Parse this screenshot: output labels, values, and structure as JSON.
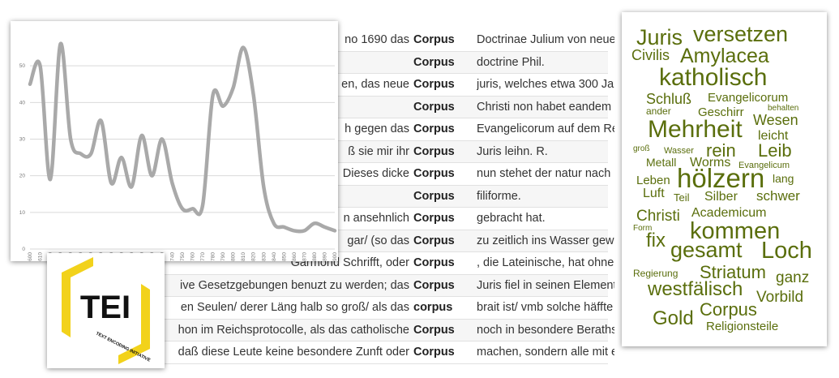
{
  "concordance": {
    "rows": [
      {
        "left": "no 1690 das",
        "keyword": "Corpus",
        "right": "Doctrinae Julium von neue"
      },
      {
        "left": "",
        "keyword": "Corpus",
        "right": "doctrine Phil."
      },
      {
        "left": "en, das neue",
        "keyword": "Corpus",
        "right": "juris, welches etwa 300 Ja"
      },
      {
        "left": "",
        "keyword": "Corpus",
        "right": "Christi non habet eandem"
      },
      {
        "left": "h gegen das",
        "keyword": "Corpus",
        "right": "Evangelicorum auf dem Re"
      },
      {
        "left": "ß sie mir ihr",
        "keyword": "Corpus",
        "right": "Juris leihn. R."
      },
      {
        "left": "Dieses dicke",
        "keyword": "Corpus",
        "right": "nun stehet der natur nach"
      },
      {
        "left": "",
        "keyword": "Corpus",
        "right": "filiforme."
      },
      {
        "left": "n ansehnlich",
        "keyword": "Corpus",
        "right": "gebracht hat."
      },
      {
        "left": "gar/ (so das",
        "keyword": "Corpus",
        "right": "zu zeitlich ins Wasser gew"
      },
      {
        "left": "Garmond Schrifft, oder",
        "keyword": "Corpus",
        "right": ", die Lateinische, hat ohne"
      },
      {
        "left": "ive Gesetzgebungen benuzt zu werden; das",
        "keyword": "Corpus",
        "right": "Juris fiel in seinen Element"
      },
      {
        "left": "en Seulen/ derer Läng halb so groß/ als das",
        "keyword": "corpus",
        "right": "brait ist/ vmb solche häffte"
      },
      {
        "left": "hon im Reichsprotocolle, als das catholische",
        "keyword": "Corpus",
        "right": "noch in besondere Beraths"
      },
      {
        "left": "daß diese Leute keine besondere Zunft oder",
        "keyword": "Corpus",
        "right": "machen, sondern alle mit einander entweder Spezereyhandl..."
      }
    ]
  },
  "chart_data": {
    "type": "line",
    "x": [
      1600,
      1610,
      1620,
      1630,
      1640,
      1650,
      1660,
      1670,
      1680,
      1690,
      1700,
      1710,
      1720,
      1730,
      1740,
      1750,
      1760,
      1770,
      1780,
      1790,
      1800,
      1810,
      1820,
      1830,
      1840,
      1850,
      1860,
      1870,
      1880,
      1890,
      1900
    ],
    "values": [
      45,
      50,
      19,
      56,
      30,
      26,
      26,
      35,
      18,
      25,
      17,
      31,
      20,
      30,
      18,
      11,
      11,
      12,
      42,
      39,
      44,
      55,
      42,
      17,
      7,
      6,
      5,
      5,
      7,
      6,
      5
    ],
    "yticks": [
      0,
      10,
      20,
      30,
      40,
      50
    ],
    "ylim": [
      0,
      60
    ],
    "xlim": [
      1600,
      1900
    ],
    "xticks": [
      "1600",
      "1610",
      "1620",
      "1630",
      "1640",
      "1650",
      "1660",
      "1670",
      "1680",
      "1690",
      "1700",
      "1710",
      "1720",
      "1730",
      "1740",
      "1750",
      "1760",
      "1770",
      "1780",
      "1790",
      "1800",
      "1810",
      "1820",
      "1830",
      "1840",
      "1850",
      "1860",
      "1870",
      "1880",
      "1890",
      "1900"
    ],
    "line_color": "#a9a9a9",
    "grid": true
  },
  "logo": {
    "text": "TEI",
    "tagline": "TEXT ENCODING INITIATIVE",
    "accent": "#f2d21b"
  },
  "wordcloud": {
    "color": "#5a6e0c",
    "words": [
      {
        "text": "Juris",
        "size": 27
      },
      {
        "text": "versetzen",
        "size": 27
      },
      {
        "text": "Civilis",
        "size": 18
      },
      {
        "text": "Amylacea",
        "size": 25
      },
      {
        "text": "katholisch",
        "size": 30
      },
      {
        "text": "Schluß",
        "size": 18
      },
      {
        "text": "Evangelicorum",
        "size": 15
      },
      {
        "text": "ander",
        "size": 12
      },
      {
        "text": "Geschirr",
        "size": 15
      },
      {
        "text": "behalten",
        "size": 10
      },
      {
        "text": "Mehrheit",
        "size": 30
      },
      {
        "text": "Wesen",
        "size": 18
      },
      {
        "text": "leicht",
        "size": 16
      },
      {
        "text": "groß",
        "size": 10
      },
      {
        "text": "Wasser",
        "size": 11
      },
      {
        "text": "rein",
        "size": 22
      },
      {
        "text": "Leib",
        "size": 22
      },
      {
        "text": "Metall",
        "size": 14
      },
      {
        "text": "Worms",
        "size": 16
      },
      {
        "text": "Evangelicum",
        "size": 11
      },
      {
        "text": "Leben",
        "size": 15
      },
      {
        "text": "hölzern",
        "size": 33
      },
      {
        "text": "lang",
        "size": 14
      },
      {
        "text": "Luft",
        "size": 16
      },
      {
        "text": "Teil",
        "size": 13
      },
      {
        "text": "Silber",
        "size": 16
      },
      {
        "text": "schwer",
        "size": 17
      },
      {
        "text": "Christi",
        "size": 19
      },
      {
        "text": "Academicum",
        "size": 16
      },
      {
        "text": "Form",
        "size": 10
      },
      {
        "text": "kommen",
        "size": 29
      },
      {
        "text": "fix",
        "size": 24
      },
      {
        "text": "gesamt",
        "size": 27
      },
      {
        "text": "Loch",
        "size": 29
      },
      {
        "text": "Regierung",
        "size": 12
      },
      {
        "text": "Striatum",
        "size": 22
      },
      {
        "text": "ganz",
        "size": 19
      },
      {
        "text": "westfälisch",
        "size": 24
      },
      {
        "text": "Vorbild",
        "size": 19
      },
      {
        "text": "Corpus",
        "size": 22
      },
      {
        "text": "Gold",
        "size": 24
      },
      {
        "text": "Religionsteile",
        "size": 15
      }
    ]
  }
}
